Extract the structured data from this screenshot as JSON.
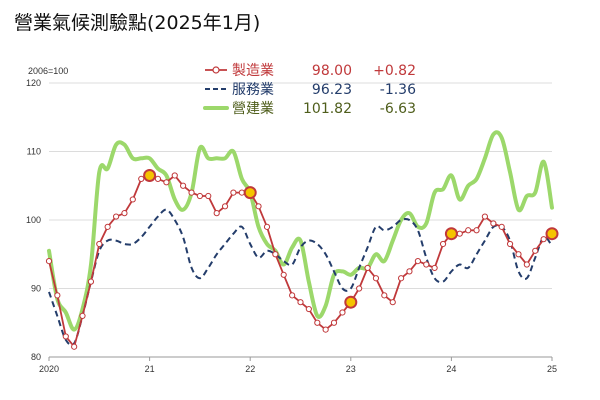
{
  "title": "營業氣候測驗點(2025年1月)",
  "chart_data": {
    "type": "line",
    "unit_label": "2006=100",
    "ylim": [
      80,
      120
    ],
    "yticks": [
      80,
      90,
      100,
      110,
      120
    ],
    "xlim": [
      2020.0,
      2025.0
    ],
    "xticks": [
      {
        "value": 2020,
        "label": "2020"
      },
      {
        "value": 2021,
        "label": "21"
      },
      {
        "value": 2022,
        "label": "22"
      },
      {
        "value": 2023,
        "label": "23"
      },
      {
        "value": 2024,
        "label": "24"
      },
      {
        "value": 2025,
        "label": "25"
      }
    ],
    "grid": "horizontal",
    "legend_position": "top-center",
    "series": [
      {
        "name": "製造業",
        "latest": "98.00",
        "change": "+0.82",
        "color": "#c0393b",
        "text_color": "#c0393b",
        "style": "solid-markers",
        "x": [
          2020.0,
          2020.083,
          2020.167,
          2020.25,
          2020.333,
          2020.417,
          2020.5,
          2020.583,
          2020.667,
          2020.75,
          2020.833,
          2020.917,
          2021.0,
          2021.083,
          2021.167,
          2021.25,
          2021.333,
          2021.417,
          2021.5,
          2021.583,
          2021.667,
          2021.75,
          2021.833,
          2021.917,
          2022.0,
          2022.083,
          2022.167,
          2022.25,
          2022.333,
          2022.417,
          2022.5,
          2022.583,
          2022.667,
          2022.75,
          2022.833,
          2022.917,
          2023.0,
          2023.083,
          2023.167,
          2023.25,
          2023.333,
          2023.417,
          2023.5,
          2023.583,
          2023.667,
          2023.75,
          2023.833,
          2023.917,
          2024.0,
          2024.083,
          2024.167,
          2024.25,
          2024.333,
          2024.417,
          2024.5,
          2024.583,
          2024.667,
          2024.75,
          2024.833,
          2024.917,
          2025.0
        ],
        "values": [
          94.0,
          89.0,
          83.0,
          81.5,
          86.0,
          91.0,
          96.5,
          99.0,
          100.5,
          101.0,
          103.0,
          106.0,
          106.5,
          106.0,
          105.5,
          106.5,
          105.0,
          104.0,
          103.5,
          103.5,
          101.0,
          102.0,
          104.0,
          104.0,
          104.0,
          102.0,
          99.0,
          95.0,
          92.0,
          89.0,
          88.0,
          87.0,
          85.0,
          84.0,
          85.0,
          86.5,
          88.0,
          90.0,
          93.0,
          91.5,
          89.0,
          88.0,
          91.5,
          92.5,
          94.0,
          93.5,
          93.0,
          96.5,
          98.0,
          98.0,
          98.5,
          98.5,
          100.5,
          99.5,
          99.0,
          96.5,
          95.0,
          93.5,
          95.5,
          97.2,
          98.0
        ],
        "highlighted_points": [
          2021.0,
          2022.0,
          2023.0,
          2024.0,
          2025.0
        ]
      },
      {
        "name": "服務業",
        "latest": "96.23",
        "change": "-1.36",
        "color": "#243d6b",
        "text_color": "#243d6b",
        "style": "dashed",
        "x": [
          2020.0,
          2020.083,
          2020.167,
          2020.25,
          2020.333,
          2020.417,
          2020.5,
          2020.583,
          2020.667,
          2020.75,
          2020.833,
          2020.917,
          2021.0,
          2021.083,
          2021.167,
          2021.25,
          2021.333,
          2021.417,
          2021.5,
          2021.583,
          2021.667,
          2021.75,
          2021.833,
          2021.917,
          2022.0,
          2022.083,
          2022.167,
          2022.25,
          2022.333,
          2022.417,
          2022.5,
          2022.583,
          2022.667,
          2022.75,
          2022.833,
          2022.917,
          2023.0,
          2023.083,
          2023.167,
          2023.25,
          2023.333,
          2023.417,
          2023.5,
          2023.583,
          2023.667,
          2023.75,
          2023.833,
          2023.917,
          2024.0,
          2024.083,
          2024.167,
          2024.25,
          2024.333,
          2024.417,
          2024.5,
          2024.583,
          2024.667,
          2024.75,
          2024.833,
          2024.917,
          2025.0
        ],
        "values": [
          89.5,
          86.0,
          82.5,
          82.0,
          86.0,
          91.0,
          95.5,
          97.0,
          97.0,
          96.5,
          96.5,
          97.5,
          99.0,
          100.5,
          101.5,
          100.0,
          97.5,
          93.0,
          91.5,
          93.0,
          95.0,
          96.5,
          98.0,
          99.0,
          96.5,
          94.5,
          95.5,
          95.0,
          94.0,
          93.5,
          96.0,
          97.0,
          96.5,
          95.0,
          92.5,
          90.0,
          90.0,
          93.0,
          96.0,
          99.0,
          98.5,
          99.0,
          100.0,
          100.0,
          98.5,
          94.5,
          91.5,
          91.0,
          92.5,
          93.5,
          93.0,
          95.0,
          97.0,
          99.0,
          99.0,
          97.0,
          92.5,
          91.5,
          94.5,
          97.5,
          96.2
        ]
      },
      {
        "name": "營建業",
        "latest": "101.82",
        "change": "-6.63",
        "color": "#9cd86b",
        "text_color": "#4f5e1c",
        "style": "thick",
        "x": [
          2020.0,
          2020.083,
          2020.167,
          2020.25,
          2020.333,
          2020.417,
          2020.5,
          2020.583,
          2020.667,
          2020.75,
          2020.833,
          2020.917,
          2021.0,
          2021.083,
          2021.167,
          2021.25,
          2021.333,
          2021.417,
          2021.5,
          2021.583,
          2021.667,
          2021.75,
          2021.833,
          2021.917,
          2022.0,
          2022.083,
          2022.167,
          2022.25,
          2022.333,
          2022.417,
          2022.5,
          2022.583,
          2022.667,
          2022.75,
          2022.833,
          2022.917,
          2023.0,
          2023.083,
          2023.167,
          2023.25,
          2023.333,
          2023.417,
          2023.5,
          2023.583,
          2023.667,
          2023.75,
          2023.833,
          2023.917,
          2024.0,
          2024.083,
          2024.167,
          2024.25,
          2024.333,
          2024.417,
          2024.5,
          2024.583,
          2024.667,
          2024.75,
          2024.833,
          2024.917,
          2025.0
        ],
        "values": [
          95.5,
          88.5,
          86.5,
          84.0,
          87.0,
          93.5,
          107.0,
          107.5,
          111.0,
          111.0,
          109.0,
          109.0,
          109.0,
          107.5,
          106.5,
          103.0,
          101.5,
          104.0,
          110.5,
          109.0,
          109.0,
          109.0,
          110.0,
          106.0,
          104.0,
          99.0,
          96.5,
          95.5,
          93.5,
          96.0,
          97.0,
          91.0,
          86.0,
          87.5,
          92.0,
          92.5,
          92.0,
          93.0,
          93.0,
          95.0,
          94.0,
          97.0,
          100.0,
          101.0,
          99.0,
          99.5,
          104.0,
          104.5,
          106.5,
          103.0,
          105.0,
          106.0,
          109.0,
          112.5,
          112.0,
          107.0,
          101.5,
          103.5,
          104.0,
          108.5,
          101.8
        ]
      }
    ]
  }
}
